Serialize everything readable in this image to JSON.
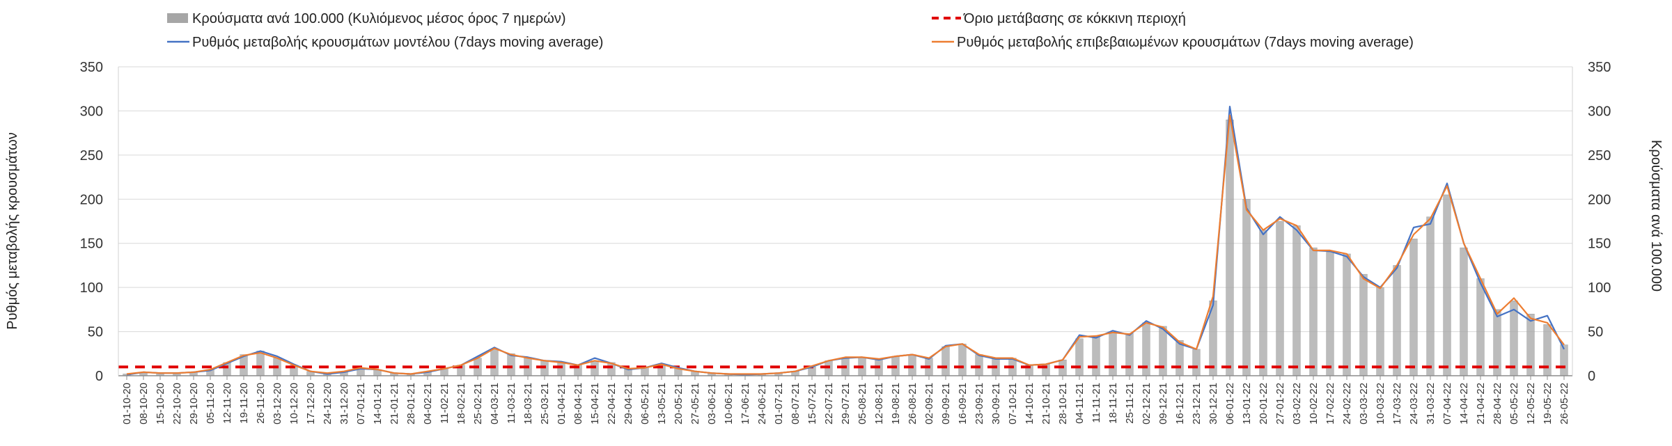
{
  "chart_data": {
    "type": "bar+line",
    "title": "",
    "ylabel_left": "Ρυθμός μεταβολής κρουσμάτων",
    "ylabel_right": "Κρούσματα ανά 100.000",
    "ylim": [
      0,
      350
    ],
    "y_ticks": [
      0,
      50,
      100,
      150,
      200,
      250,
      300,
      350
    ],
    "grid": true,
    "legend_position": "top",
    "threshold": {
      "name": "Όριο μετάβασης σε κόκκινη περιοχή",
      "value": 10,
      "color": "#e00000"
    },
    "categories": [
      "01-10-20",
      "08-10-20",
      "15-10-20",
      "22-10-20",
      "29-10-20",
      "05-11-20",
      "12-11-20",
      "19-11-20",
      "26-11-20",
      "03-12-20",
      "10-12-20",
      "17-12-20",
      "24-12-20",
      "31-12-20",
      "07-01-21",
      "14-01-21",
      "21-01-21",
      "28-01-21",
      "04-02-21",
      "11-02-21",
      "18-02-21",
      "25-02-21",
      "04-03-21",
      "11-03-21",
      "18-03-21",
      "25-03-21",
      "01-04-21",
      "08-04-21",
      "15-04-21",
      "22-04-21",
      "29-04-21",
      "06-05-21",
      "13-05-21",
      "20-05-21",
      "27-05-21",
      "03-06-21",
      "10-06-21",
      "17-06-21",
      "24-06-21",
      "01-07-21",
      "08-07-21",
      "15-07-21",
      "22-07-21",
      "29-07-21",
      "05-08-21",
      "12-08-21",
      "19-08-21",
      "26-08-21",
      "02-09-21",
      "09-09-21",
      "16-09-21",
      "23-09-21",
      "30-09-21",
      "07-10-21",
      "14-10-21",
      "21-10-21",
      "28-10-21",
      "04-11-21",
      "11-11-21",
      "18-11-21",
      "25-11-21",
      "02-12-21",
      "09-12-21",
      "16-12-21",
      "23-12-21",
      "30-12-21",
      "06-01-22",
      "13-01-22",
      "20-01-22",
      "27-01-22",
      "03-02-22",
      "10-02-22",
      "17-02-22",
      "24-02-22",
      "03-03-22",
      "10-03-22",
      "17-03-22",
      "24-03-22",
      "31-03-22",
      "07-04-22",
      "14-04-22",
      "21-04-22",
      "28-04-22",
      "05-05-22",
      "12-05-22",
      "19-05-22",
      "26-05-22"
    ],
    "series": [
      {
        "name": "Κρούσματα ανά 100.000 (Κυλιόμενος μέσος όρος 7 ημερών)",
        "type": "bar",
        "color": "#a6a6a6",
        "values": [
          2,
          4,
          3,
          3,
          4,
          7,
          15,
          24,
          28,
          20,
          12,
          5,
          3,
          5,
          9,
          7,
          3,
          2,
          5,
          8,
          12,
          20,
          30,
          25,
          20,
          17,
          15,
          12,
          17,
          15,
          8,
          10,
          13,
          8,
          5,
          3,
          2,
          2,
          2,
          3,
          5,
          10,
          17,
          20,
          21,
          19,
          22,
          24,
          20,
          33,
          36,
          24,
          20,
          20,
          12,
          13,
          18,
          42,
          45,
          49,
          48,
          60,
          56,
          40,
          30,
          85,
          290,
          200,
          165,
          175,
          170,
          145,
          140,
          138,
          115,
          100,
          125,
          155,
          180,
          205,
          145,
          110,
          75,
          85,
          70,
          58,
          35
        ]
      },
      {
        "name": "Ρυθμός μεταβολής κρουσμάτων μοντέλου (7days moving average)",
        "type": "line",
        "color": "#4472c4",
        "values": [
          1,
          4,
          3,
          3,
          4,
          6,
          14,
          22,
          28,
          22,
          13,
          5,
          2,
          4,
          8,
          7,
          3,
          2,
          4,
          8,
          12,
          22,
          32,
          23,
          21,
          17,
          16,
          12,
          20,
          14,
          7,
          9,
          14,
          9,
          5,
          3,
          2,
          1,
          2,
          3,
          5,
          10,
          17,
          20,
          21,
          18,
          22,
          24,
          19,
          34,
          36,
          23,
          19,
          19,
          12,
          13,
          18,
          46,
          43,
          51,
          46,
          62,
          53,
          36,
          30,
          80,
          305,
          190,
          160,
          180,
          165,
          142,
          141,
          135,
          112,
          100,
          122,
          168,
          172,
          218,
          150,
          105,
          67,
          75,
          62,
          68,
          30
        ]
      },
      {
        "name": "Ρυθμός μεταβολής επιβεβαιωμένων κρουσμάτων (7days moving average)",
        "type": "line",
        "color": "#ed7d31",
        "values": [
          2,
          4,
          3,
          3,
          4,
          7,
          15,
          23,
          26,
          20,
          12,
          5,
          3,
          5,
          9,
          7,
          3,
          2,
          5,
          8,
          12,
          20,
          31,
          24,
          20,
          17,
          15,
          12,
          17,
          14,
          8,
          9,
          13,
          8,
          5,
          3,
          2,
          2,
          2,
          3,
          5,
          11,
          17,
          21,
          21,
          19,
          22,
          24,
          20,
          33,
          36,
          24,
          20,
          20,
          12,
          13,
          18,
          44,
          45,
          49,
          47,
          60,
          55,
          38,
          30,
          90,
          295,
          188,
          165,
          178,
          170,
          142,
          142,
          138,
          110,
          99,
          125,
          160,
          178,
          215,
          150,
          110,
          70,
          88,
          65,
          60,
          35
        ]
      }
    ]
  }
}
